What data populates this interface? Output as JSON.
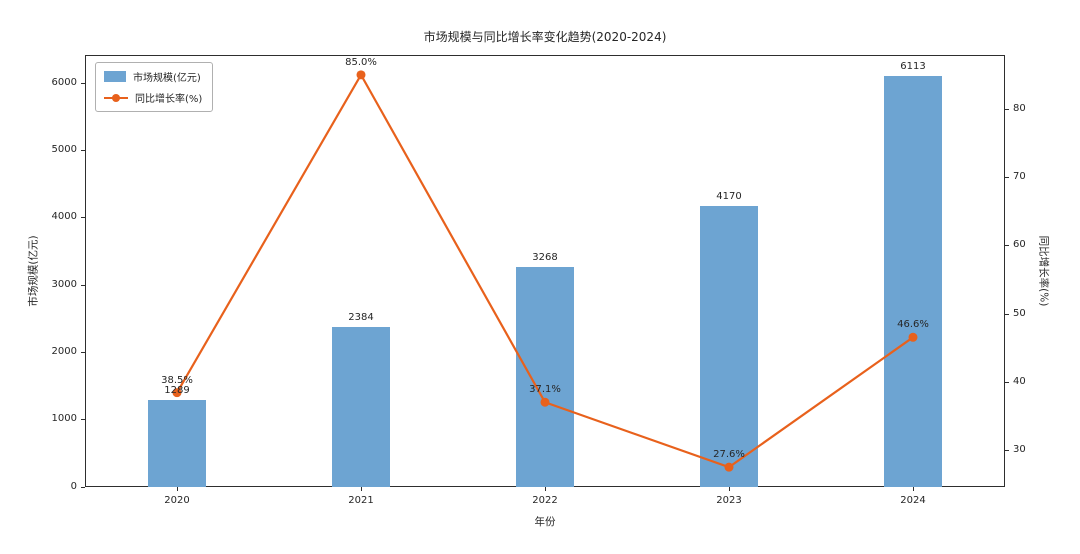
{
  "figure": {
    "title": "市场规模与同比增长率变化趋势(2020-2024)",
    "x_axis_label": "年份",
    "y_left_axis_label": "市场规模(亿元)",
    "y_right_axis_label": "同比增长率(%)"
  },
  "legend": {
    "items": [
      {
        "label": "市场规模(亿元)",
        "type": "bar",
        "color": "#6da4d2"
      },
      {
        "label": "同比增长率(%)",
        "type": "line",
        "color": "#e8611c"
      }
    ]
  },
  "chart_data": {
    "type": "bar",
    "subtype": "combo bar + line with dual y-axes",
    "title": "市场规模与同比增长率变化趋势(2020-2024)",
    "categories": [
      "2020",
      "2021",
      "2022",
      "2023",
      "2024"
    ],
    "series": [
      {
        "name": "市场规模(亿元)",
        "type": "bar",
        "axis": "left",
        "color": "#6da4d2",
        "values": [
          1289,
          2384,
          3268,
          4170,
          6113
        ],
        "data_labels": [
          "1289",
          "2384",
          "3268",
          "4170",
          "6113"
        ]
      },
      {
        "name": "同比增长率(%)",
        "type": "line",
        "axis": "right",
        "color": "#e8611c",
        "values": [
          38.5,
          85.0,
          37.1,
          27.6,
          46.6
        ],
        "data_labels": [
          "38.5%",
          "85.0%",
          "37.1%",
          "27.6%",
          "46.6%"
        ]
      }
    ],
    "xlabel": "年份",
    "y_left": {
      "label": "市场规模(亿元)",
      "ticks": [
        0,
        1000,
        2000,
        3000,
        4000,
        5000,
        6000
      ],
      "range": [
        0,
        6419
      ]
    },
    "y_right": {
      "label": "同比增长率(%)",
      "ticks": [
        30,
        40,
        50,
        60,
        70,
        80
      ],
      "range": [
        24.7,
        87.9
      ]
    },
    "grid": false,
    "legend_position": "upper left"
  }
}
